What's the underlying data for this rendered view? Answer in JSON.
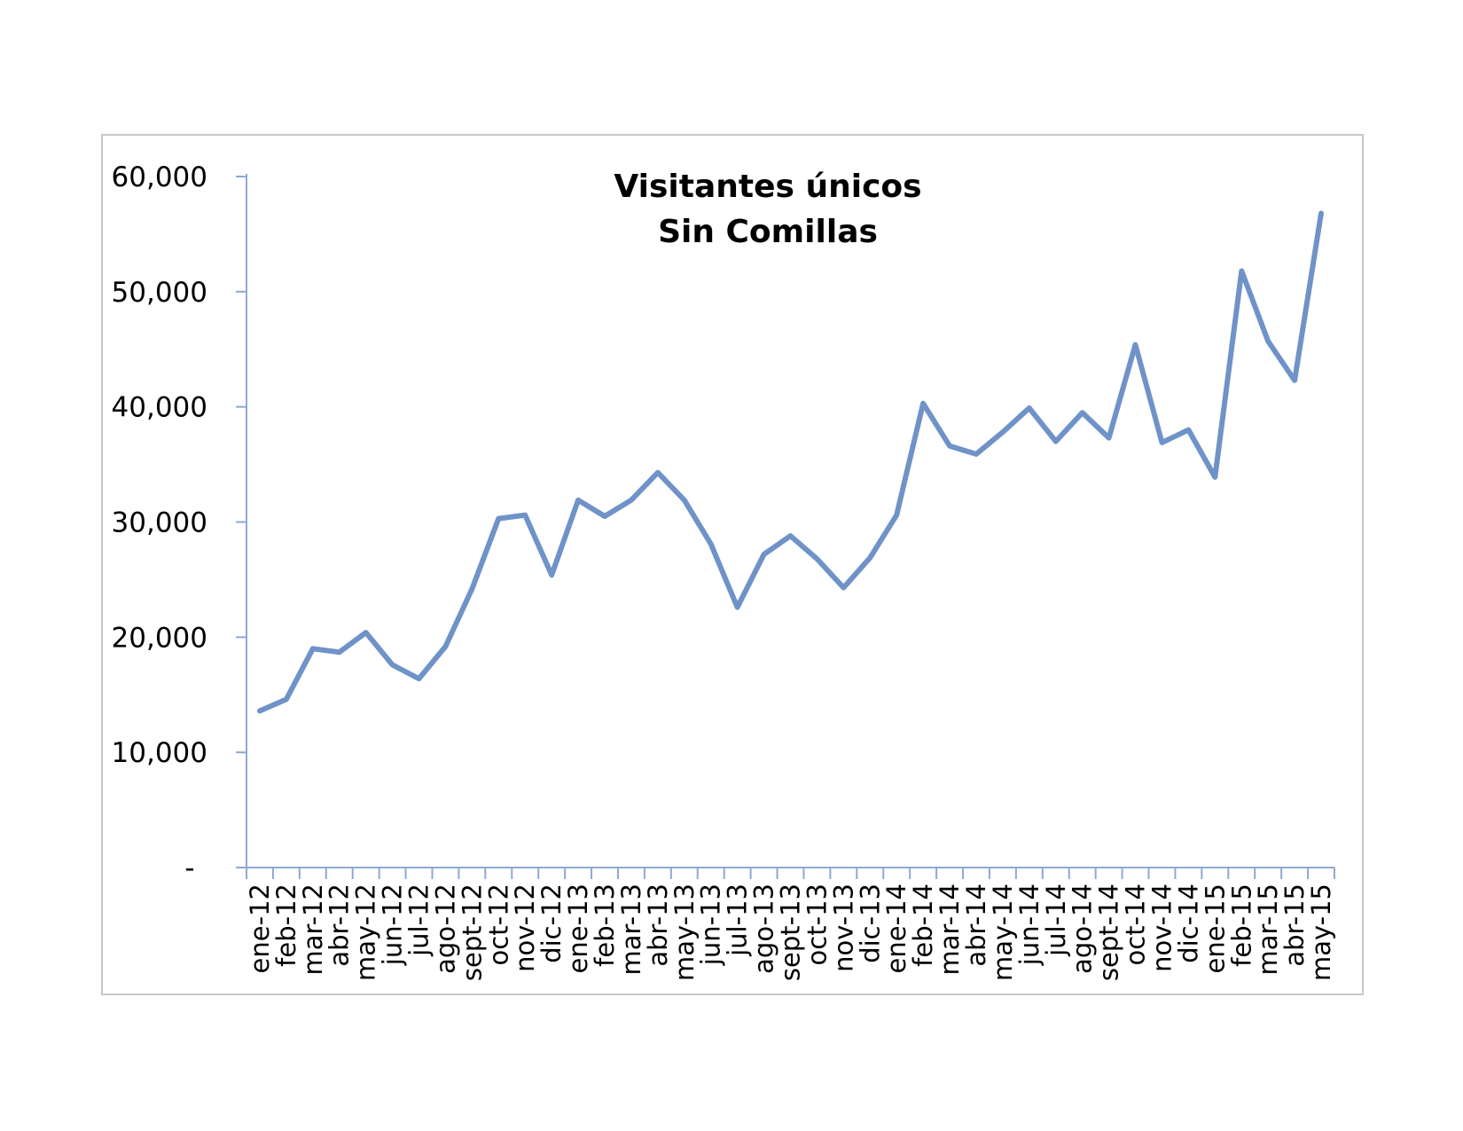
{
  "chart_data": {
    "type": "line",
    "title": [
      "Visitantes únicos",
      "Sin Comillas"
    ],
    "xlabel": "",
    "ylabel": "",
    "ylim": [
      0,
      60000
    ],
    "yticks": [
      0,
      10000,
      20000,
      30000,
      40000,
      50000,
      60000
    ],
    "ytick_labels": [
      "-",
      "10,000",
      "20,000",
      "30,000",
      "40,000",
      "50,000",
      "60,000"
    ],
    "categories": [
      "ene-12",
      "feb-12",
      "mar-12",
      "abr-12",
      "may-12",
      "jun-12",
      "jul-12",
      "ago-12",
      "sept-12",
      "oct-12",
      "nov-12",
      "dic-12",
      "ene-13",
      "feb-13",
      "mar-13",
      "abr-13",
      "may-13",
      "jun-13",
      "jul-13",
      "ago-13",
      "sept-13",
      "oct-13",
      "nov-13",
      "dic-13",
      "ene-14",
      "feb-14",
      "mar-14",
      "abr-14",
      "may-14",
      "jun-14",
      "jul-14",
      "ago-14",
      "sept-14",
      "oct-14",
      "nov-14",
      "dic-14",
      "ene-15",
      "feb-15",
      "mar-15",
      "abr-15",
      "may-15"
    ],
    "series": [
      {
        "values": [
          13600,
          14600,
          19000,
          18700,
          20400,
          17600,
          16400,
          19200,
          24200,
          30300,
          30600,
          25400,
          31900,
          30500,
          31900,
          34300,
          31900,
          28100,
          22600,
          27200,
          28800,
          26800,
          24300,
          26900,
          30600,
          40300,
          36600,
          35900,
          37800,
          39900,
          37000,
          39500,
          37300,
          45400,
          36900,
          38000,
          33900,
          51800,
          45700,
          42300,
          56800
        ],
        "color": "#6f93c8"
      }
    ],
    "grid": false,
    "legend": "none"
  }
}
